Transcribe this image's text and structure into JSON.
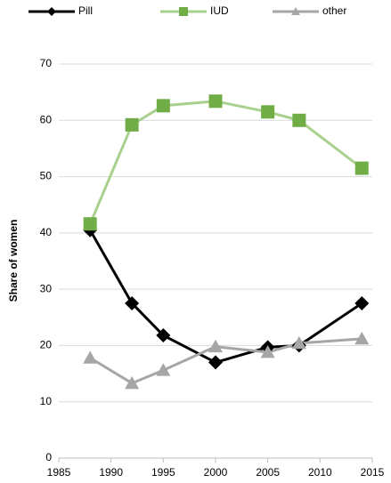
{
  "chart_data": {
    "type": "line",
    "x": [
      1988,
      1992,
      1995,
      2000,
      2005,
      2008,
      2014
    ],
    "series": [
      {
        "name": "Pill",
        "color": "#000000",
        "marker": "diamond",
        "values": [
          40.5,
          27.5,
          21.8,
          17,
          19.7,
          20,
          27.5
        ]
      },
      {
        "name": "IUD",
        "color": "#a9d18e",
        "marker_color": "#70ad47",
        "marker": "square",
        "values": [
          41.6,
          59.2,
          62.6,
          63.4,
          61.5,
          60,
          51.5
        ]
      },
      {
        "name": "other",
        "color": "#a6a6a6",
        "marker": "triangle",
        "values": [
          17.8,
          13.3,
          15.6,
          19.8,
          18.8,
          20.4,
          21.2
        ]
      }
    ],
    "y_label": "Share of women",
    "xlim": [
      1985,
      2015
    ],
    "xticks": [
      1985,
      1990,
      1995,
      2000,
      2005,
      2010,
      2015
    ],
    "ylim": [
      0,
      70
    ],
    "yticks": [
      0,
      10,
      20,
      30,
      40,
      50,
      60,
      70
    ],
    "grid": true,
    "legend": "top"
  }
}
